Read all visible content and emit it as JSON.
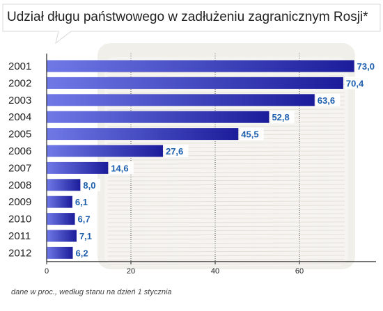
{
  "title": "Udział długu państwowego w zadłużeniu zagranicznym Rosji*",
  "footnote": "dane w proc., według stanu na dzień 1 stycznia",
  "colors": {
    "bar_left": "#6f79e6",
    "bar_right": "#1b1c9a",
    "label": "#1e5fae",
    "axis": "#222222",
    "grid": "#555555",
    "label_bg": "#ffffff"
  },
  "chart_data": {
    "type": "bar",
    "orientation": "horizontal",
    "categories": [
      "2001",
      "2002",
      "2003",
      "2004",
      "2005",
      "2006",
      "2007",
      "2008",
      "2009",
      "2010",
      "2011",
      "2012"
    ],
    "values": [
      73.0,
      70.4,
      63.6,
      52.8,
      45.5,
      27.6,
      14.6,
      8.0,
      6.1,
      6.7,
      7.1,
      6.2
    ],
    "value_labels": [
      "73,0",
      "70,4",
      "63,6",
      "52,8",
      "45,5",
      "27,6",
      "14,6",
      "8,0",
      "6,1",
      "6,7",
      "7,1",
      "6,2"
    ],
    "x_ticks": [
      0,
      20,
      40,
      60
    ],
    "x_tick_labels": [
      "0",
      "20",
      "40",
      "60"
    ],
    "xlim": [
      0,
      80
    ],
    "grid": "vertical dotted",
    "title": "Udział długu państwowego w zadłużeniu zagranicznym Rosji*",
    "xlabel": "",
    "ylabel": ""
  }
}
